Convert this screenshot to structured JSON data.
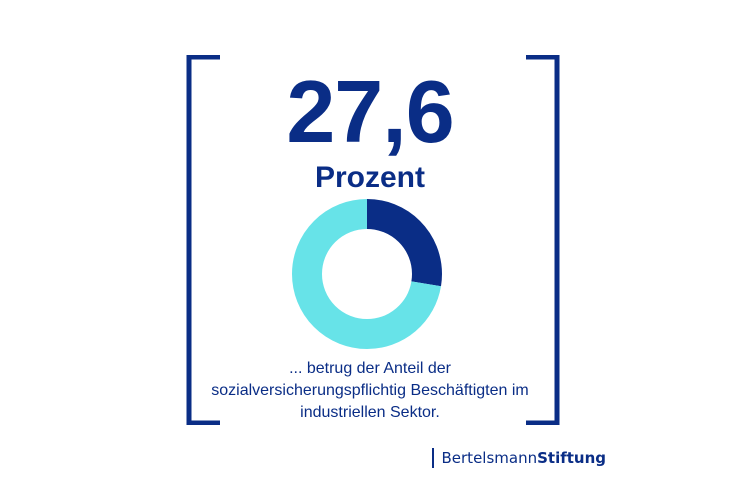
{
  "colors": {
    "brand_dark": "#0a2d86",
    "accent_cyan": "#67e3e8",
    "background": "#ffffff"
  },
  "headline": {
    "value": "27,6",
    "unit": "Prozent"
  },
  "chart_data": {
    "type": "pie",
    "variant": "donut",
    "title": "",
    "slices": [
      {
        "value": 27.6,
        "color": "#0a2d86"
      },
      {
        "value": 72.4,
        "color": "#67e3e8"
      }
    ]
  },
  "caption": {
    "line1": "... betrug der Anteil der",
    "line2": "sozialversicherungspflichtig Beschäftigten im",
    "line3": "industriellen Sektor."
  },
  "logo": {
    "part1": "Bertelsmann",
    "part2": "Stiftung"
  }
}
